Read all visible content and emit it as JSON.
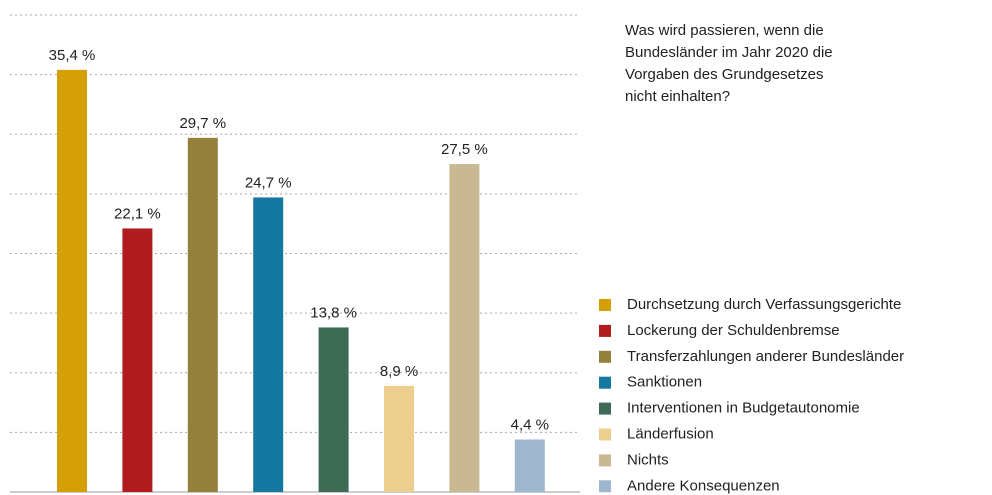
{
  "chart_data": {
    "type": "bar",
    "title": "Was wird passieren, wenn die\nBundesländer im Jahr 2020 die\nVorgaben des Grundgesetzes\nnicht einhalten?",
    "categories": [
      "Durchsetzung durch Verfassungsgerichte",
      "Lockerung der Schuldenbremse",
      "Transferzahlungen anderer Bundesländer",
      "Sanktionen",
      "Interventionen in Budgetautonomie",
      "Länderfusion",
      "Nichts",
      "Andere Konsequenzen"
    ],
    "values": [
      35.4,
      22.1,
      29.7,
      24.7,
      13.8,
      8.9,
      27.5,
      4.4
    ],
    "value_labels": [
      "35,4 %",
      "22,1 %",
      "29,7 %",
      "24,7 %",
      "13,8 %",
      "8,9 %",
      "27,5 %",
      "4,4 %"
    ],
    "colors": [
      "#d4a006",
      "#b01c1e",
      "#94803a",
      "#1578a0",
      "#3d6b56",
      "#ecce8e",
      "#c8b993",
      "#9fb6cf"
    ],
    "ylim": [
      0,
      40
    ],
    "yticks": [
      0,
      5,
      10,
      15,
      20,
      25,
      30,
      35,
      40
    ],
    "grid": true,
    "legend": "right"
  }
}
